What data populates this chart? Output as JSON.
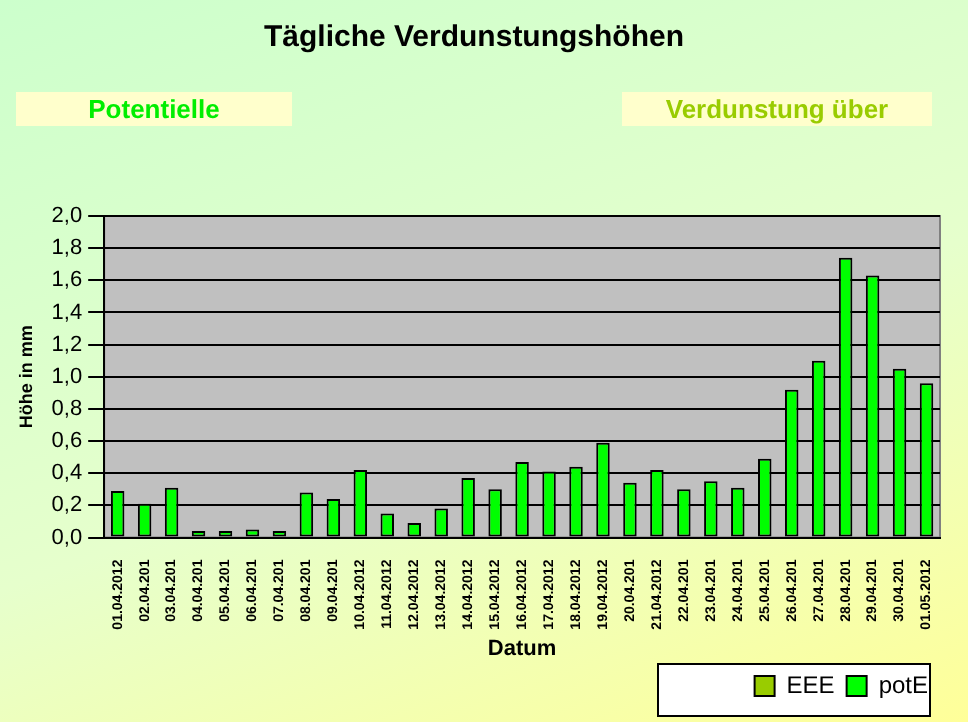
{
  "chart_data": {
    "type": "bar",
    "title": "Tägliche Verdunstungshöhen",
    "xlabel": "Datum",
    "ylabel": "Höhe in mm",
    "annotations": [
      "Potentielle",
      "Verdunstung über"
    ],
    "categories": [
      "01.04.2012",
      "02.04.201",
      "03.04.201",
      "04.04.201",
      "05.04.201",
      "06.04.201",
      "07.04.201",
      "08.04.201",
      "09.04.201",
      "10.04.2012",
      "11.04.2012",
      "12.04.2012",
      "13.04.2012",
      "14.04.2012",
      "15.04.2012",
      "16.04.2012",
      "17.04.2012",
      "18.04.2012",
      "19.04.2012",
      "20.04.201",
      "21.04.2012",
      "22.04.201",
      "23.04.201",
      "24.04.201",
      "25.04.201",
      "26.04.201",
      "27.04.201",
      "28.04.201",
      "29.04.201",
      "30.04.201",
      "01.05.2012"
    ],
    "series": [
      {
        "name": "EEE",
        "color": "#99cc00",
        "values": [
          null,
          null,
          null,
          null,
          null,
          null,
          null,
          null,
          null,
          null,
          null,
          null,
          null,
          null,
          null,
          null,
          null,
          null,
          null,
          null,
          null,
          null,
          null,
          null,
          null,
          null,
          null,
          null,
          null,
          null,
          null
        ]
      },
      {
        "name": "potE",
        "color": "#00ff00",
        "values": [
          0.29,
          0.21,
          0.31,
          0.04,
          0.04,
          0.05,
          0.04,
          0.28,
          0.24,
          0.42,
          0.15,
          0.09,
          0.18,
          0.37,
          0.3,
          0.47,
          0.41,
          0.44,
          0.59,
          0.34,
          0.42,
          0.3,
          0.35,
          0.31,
          0.49,
          0.92,
          1.1,
          1.74,
          1.63,
          1.05,
          0.96
        ]
      }
    ],
    "ylim": [
      0,
      2
    ],
    "yticks": [
      {
        "value": 0,
        "label": "0,0"
      },
      {
        "value": 0.2,
        "label": "0,2"
      },
      {
        "value": 0.4,
        "label": "0,4"
      },
      {
        "value": 0.6,
        "label": "0,6"
      },
      {
        "value": 0.8,
        "label": "0,8"
      },
      {
        "value": 1,
        "label": "1,0"
      },
      {
        "value": 1.2,
        "label": "1,2"
      },
      {
        "value": 1.4,
        "label": "1,4"
      },
      {
        "value": 1.6,
        "label": "1,6"
      },
      {
        "value": 1.8,
        "label": "1,8"
      },
      {
        "value": 2,
        "label": "2,0"
      }
    ],
    "grid": "y",
    "legend": "bottom right"
  }
}
